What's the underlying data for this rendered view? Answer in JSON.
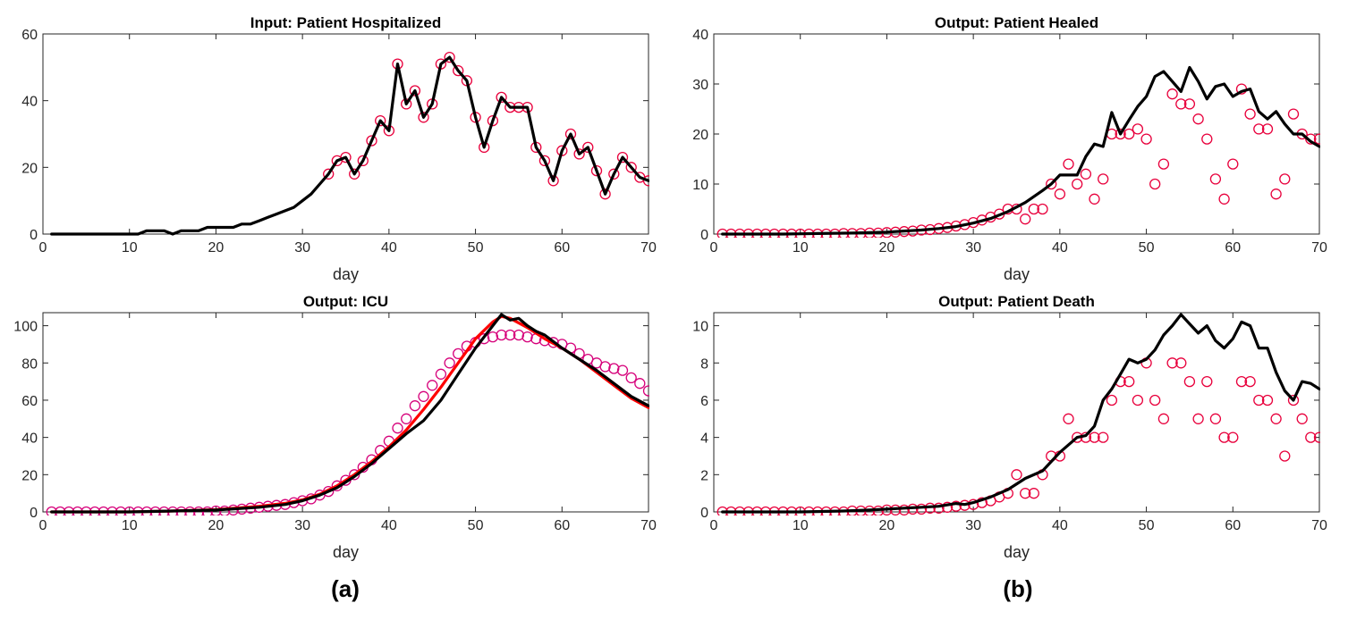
{
  "figure": {
    "panel_labels": [
      "(a)",
      "(b)"
    ]
  },
  "colors": {
    "model_line": "#000000",
    "observed_marker": "#e8003c",
    "icu_observed_marker": "#d6007a",
    "icu_fit_line": "#ff0000"
  },
  "chart_data": [
    {
      "id": "hospitalized",
      "type": "line",
      "title": "Input: Patient Hospitalized",
      "xlabel": "day",
      "ylabel": "",
      "xlim": [
        0,
        70
      ],
      "ylim": [
        0,
        60
      ],
      "xticks": [
        0,
        10,
        20,
        30,
        40,
        50,
        60,
        70
      ],
      "yticks": [
        0,
        20,
        40,
        60
      ],
      "grid": false,
      "series": [
        {
          "style": "line",
          "color": "#000000",
          "x": [
            1,
            2,
            3,
            4,
            5,
            6,
            7,
            8,
            9,
            10,
            11,
            12,
            13,
            14,
            15,
            16,
            17,
            18,
            19,
            20,
            21,
            22,
            23,
            24,
            25,
            26,
            27,
            28,
            29,
            30,
            31,
            32,
            33,
            34,
            35,
            36,
            37,
            38,
            39,
            40,
            41,
            42,
            43,
            44,
            45,
            46,
            47,
            48,
            49,
            50,
            51,
            52,
            53,
            54,
            55,
            56,
            57,
            58,
            59,
            60,
            61,
            62,
            63,
            64,
            65,
            66,
            67,
            68,
            69,
            70
          ],
          "y": [
            0,
            0,
            0,
            0,
            0,
            0,
            0,
            0,
            0,
            0,
            0,
            1,
            1,
            1,
            0,
            1,
            1,
            1,
            2,
            2,
            2,
            2,
            3,
            3,
            4,
            5,
            6,
            7,
            8,
            10,
            12,
            15,
            18,
            22,
            23,
            18,
            22,
            28,
            34,
            31,
            51,
            39,
            43,
            35,
            39,
            51,
            53,
            49,
            46,
            35,
            26,
            34,
            41,
            38,
            38,
            38,
            26,
            22,
            16,
            25,
            30,
            24,
            26,
            19,
            12,
            18,
            23,
            20,
            17,
            16
          ]
        },
        {
          "style": "markers",
          "color": "#e8003c",
          "x": [
            33,
            34,
            35,
            36,
            37,
            38,
            39,
            40,
            41,
            42,
            43,
            44,
            45,
            46,
            47,
            48,
            49,
            50,
            51,
            52,
            53,
            54,
            55,
            56,
            57,
            58,
            59,
            60,
            61,
            62,
            63,
            64,
            65,
            66,
            67,
            68,
            69,
            70
          ],
          "y": [
            18,
            22,
            23,
            18,
            22,
            28,
            34,
            31,
            51,
            39,
            43,
            35,
            39,
            51,
            53,
            49,
            46,
            35,
            26,
            34,
            41,
            38,
            38,
            38,
            26,
            22,
            16,
            25,
            30,
            24,
            26,
            19,
            12,
            18,
            23,
            20,
            17,
            16
          ]
        }
      ]
    },
    {
      "id": "healed",
      "type": "line",
      "title": "Output: Patient Healed",
      "xlabel": "day",
      "ylabel": "",
      "xlim": [
        0,
        70
      ],
      "ylim": [
        0,
        40
      ],
      "xticks": [
        0,
        10,
        20,
        30,
        40,
        50,
        60,
        70
      ],
      "yticks": [
        0,
        10,
        20,
        30,
        40
      ],
      "grid": false,
      "series": [
        {
          "style": "line",
          "color": "#000000",
          "x": [
            1,
            4,
            8,
            12,
            16,
            20,
            22,
            24,
            26,
            28,
            30,
            32,
            34,
            36,
            38,
            39,
            40,
            41,
            42,
            43,
            44,
            45,
            46,
            47,
            48,
            49,
            50,
            51,
            52,
            53,
            54,
            55,
            56,
            57,
            58,
            59,
            60,
            61,
            62,
            63,
            64,
            65,
            66,
            67,
            68,
            69,
            70
          ],
          "y": [
            0,
            0,
            0,
            0.1,
            0.2,
            0.4,
            0.6,
            0.8,
            1.1,
            1.5,
            2.2,
            3.1,
            4.5,
            6.3,
            8.7,
            10,
            11.8,
            11.8,
            11.8,
            15.5,
            18,
            17.5,
            24.3,
            20,
            22.8,
            25.5,
            27.5,
            31.5,
            32.5,
            30.5,
            28.5,
            33.3,
            30.5,
            27,
            29.5,
            30,
            27.5,
            28.5,
            29,
            24.5,
            23,
            24.5,
            22,
            20,
            20,
            18.5,
            17.5
          ]
        },
        {
          "style": "markers",
          "color": "#e8003c",
          "x": [
            1,
            2,
            3,
            4,
            5,
            6,
            7,
            8,
            9,
            10,
            11,
            12,
            13,
            14,
            15,
            16,
            17,
            18,
            19,
            20,
            21,
            22,
            23,
            24,
            25,
            26,
            27,
            28,
            29,
            30,
            31,
            32,
            33,
            34,
            35,
            36,
            37,
            38,
            39,
            40,
            41,
            42,
            43,
            44,
            45,
            46,
            47,
            48,
            49,
            50,
            51,
            52,
            53,
            54,
            55,
            56,
            57,
            58,
            59,
            60,
            61,
            62,
            63,
            64,
            65,
            66,
            67,
            68,
            69,
            70
          ],
          "y": [
            0,
            0,
            0,
            0,
            0,
            0,
            0,
            0,
            0,
            0,
            0,
            0,
            0,
            0,
            0.1,
            0.1,
            0.1,
            0.2,
            0.2,
            0.3,
            0.4,
            0.5,
            0.6,
            0.8,
            0.9,
            1.1,
            1.3,
            1.6,
            1.9,
            2.3,
            2.8,
            3.4,
            4,
            5,
            5,
            3,
            5,
            5,
            10,
            8,
            14,
            10,
            12,
            7,
            11,
            20,
            20,
            20,
            21,
            19,
            10,
            14,
            28,
            26,
            26,
            23,
            19,
            11,
            7,
            14,
            29,
            24,
            21,
            21,
            8,
            11,
            24,
            20,
            19,
            19
          ]
        }
      ]
    },
    {
      "id": "icu",
      "type": "line",
      "title": "Output: ICU",
      "xlabel": "day",
      "ylabel": "",
      "xlim": [
        0,
        70
      ],
      "ylim": [
        0,
        107
      ],
      "xticks": [
        0,
        10,
        20,
        30,
        40,
        50,
        60,
        70
      ],
      "yticks": [
        0,
        20,
        40,
        60,
        80,
        100
      ],
      "grid": false,
      "series": [
        {
          "style": "line",
          "color": "#ff0000",
          "x": [
            1,
            5,
            10,
            15,
            20,
            25,
            28,
            30,
            32,
            34,
            36,
            38,
            40,
            42,
            44,
            46,
            48,
            50,
            52,
            53,
            54,
            56,
            58,
            60,
            62,
            64,
            66,
            68,
            70
          ],
          "y": [
            0,
            0,
            0,
            0.5,
            1.2,
            3,
            4.6,
            6.5,
            9.5,
            14,
            20,
            27,
            35,
            44,
            55,
            67,
            80,
            93,
            102,
            105,
            104,
            99,
            93,
            88,
            82,
            75,
            68,
            61,
            56
          ]
        },
        {
          "style": "line",
          "color": "#000000",
          "x": [
            1,
            5,
            10,
            15,
            20,
            25,
            28,
            30,
            32,
            34,
            36,
            38,
            40,
            42,
            44,
            46,
            48,
            50,
            52,
            53,
            54,
            55,
            56,
            57,
            58,
            60,
            62,
            64,
            66,
            68,
            70
          ],
          "y": [
            0,
            0,
            0,
            0.5,
            1,
            2.5,
            4,
            6,
            9,
            13,
            19,
            26,
            34,
            42,
            49,
            60,
            74,
            88,
            100,
            106,
            103,
            104,
            100,
            97,
            95,
            88,
            82,
            76,
            69,
            62,
            57
          ]
        },
        {
          "style": "markers",
          "color": "#d6007a",
          "x": [
            1,
            2,
            3,
            4,
            5,
            6,
            7,
            8,
            9,
            10,
            11,
            12,
            13,
            14,
            15,
            16,
            17,
            18,
            19,
            20,
            21,
            22,
            23,
            24,
            25,
            26,
            27,
            28,
            29,
            30,
            31,
            32,
            33,
            34,
            35,
            36,
            37,
            38,
            39,
            40,
            41,
            42,
            43,
            44,
            45,
            46,
            47,
            48,
            49,
            50,
            51,
            52,
            53,
            54,
            55,
            56,
            57,
            58,
            59,
            60,
            61,
            62,
            63,
            64,
            65,
            66,
            67,
            68,
            69,
            70
          ],
          "y": [
            0,
            0,
            0,
            0,
            0,
            0,
            0,
            0,
            0,
            0,
            0,
            0,
            0,
            0,
            0,
            0,
            0,
            0,
            0,
            0.5,
            0.5,
            1,
            1.5,
            2,
            2.5,
            3,
            3.5,
            4,
            5,
            6,
            7,
            9,
            11,
            14,
            17,
            20,
            24,
            28,
            33,
            38,
            45,
            50,
            57,
            62,
            68,
            74,
            80,
            85,
            89,
            91,
            93,
            94,
            95,
            95,
            95,
            94,
            93,
            92,
            91,
            90,
            88,
            85,
            82,
            80,
            78,
            77,
            76,
            72,
            69,
            65
          ]
        }
      ]
    },
    {
      "id": "death",
      "type": "line",
      "title": "Output: Patient Death",
      "xlabel": "day",
      "ylabel": "",
      "xlim": [
        0,
        70
      ],
      "ylim": [
        0,
        10.7
      ],
      "xticks": [
        0,
        10,
        20,
        30,
        40,
        50,
        60,
        70
      ],
      "yticks": [
        0,
        2,
        4,
        6,
        8,
        10
      ],
      "grid": false,
      "series": [
        {
          "style": "line",
          "color": "#000000",
          "x": [
            1,
            5,
            10,
            15,
            18,
            20,
            22,
            24,
            26,
            28,
            29,
            30,
            32,
            34,
            36,
            38,
            40,
            42,
            43,
            44,
            45,
            46,
            47,
            48,
            49,
            50,
            51,
            52,
            53,
            54,
            55,
            56,
            57,
            58,
            59,
            60,
            61,
            62,
            63,
            64,
            65,
            66,
            67,
            68,
            69,
            70
          ],
          "y": [
            0,
            0,
            0,
            0.05,
            0.1,
            0.15,
            0.2,
            0.25,
            0.3,
            0.45,
            0.4,
            0.5,
            0.8,
            1.2,
            1.8,
            2.2,
            3.2,
            4,
            4.1,
            4.6,
            6,
            6.6,
            7.4,
            8.2,
            8,
            8.2,
            8.7,
            9.5,
            10,
            10.6,
            10.1,
            9.6,
            10,
            9.2,
            8.8,
            9.3,
            10.2,
            10,
            8.8,
            8.8,
            7.5,
            6.5,
            6,
            7,
            6.9,
            6.6
          ]
        },
        {
          "style": "markers",
          "color": "#e8003c",
          "x": [
            1,
            2,
            3,
            4,
            5,
            6,
            7,
            8,
            9,
            10,
            11,
            12,
            13,
            14,
            15,
            16,
            17,
            18,
            19,
            20,
            21,
            22,
            23,
            24,
            25,
            26,
            27,
            28,
            29,
            30,
            31,
            32,
            33,
            34,
            35,
            36,
            37,
            38,
            39,
            40,
            41,
            42,
            43,
            44,
            45,
            46,
            47,
            48,
            49,
            50,
            51,
            52,
            53,
            54,
            55,
            56,
            57,
            58,
            59,
            60,
            61,
            62,
            63,
            64,
            65,
            66,
            67,
            68,
            69,
            70
          ],
          "y": [
            0,
            0,
            0,
            0,
            0,
            0,
            0,
            0,
            0,
            0,
            0,
            0,
            0,
            0,
            0,
            0.05,
            0.05,
            0.05,
            0.05,
            0.1,
            0.1,
            0.1,
            0.15,
            0.15,
            0.2,
            0.2,
            0.25,
            0.3,
            0.35,
            0.4,
            0.5,
            0.6,
            0.8,
            1,
            2,
            1,
            1,
            2,
            3,
            3,
            5,
            4,
            4,
            4,
            4,
            6,
            7,
            7,
            6,
            8,
            6,
            5,
            8,
            8,
            7,
            5,
            7,
            5,
            4,
            4,
            7,
            7,
            6,
            6,
            5,
            3,
            6,
            5,
            4,
            4
          ]
        }
      ]
    }
  ]
}
